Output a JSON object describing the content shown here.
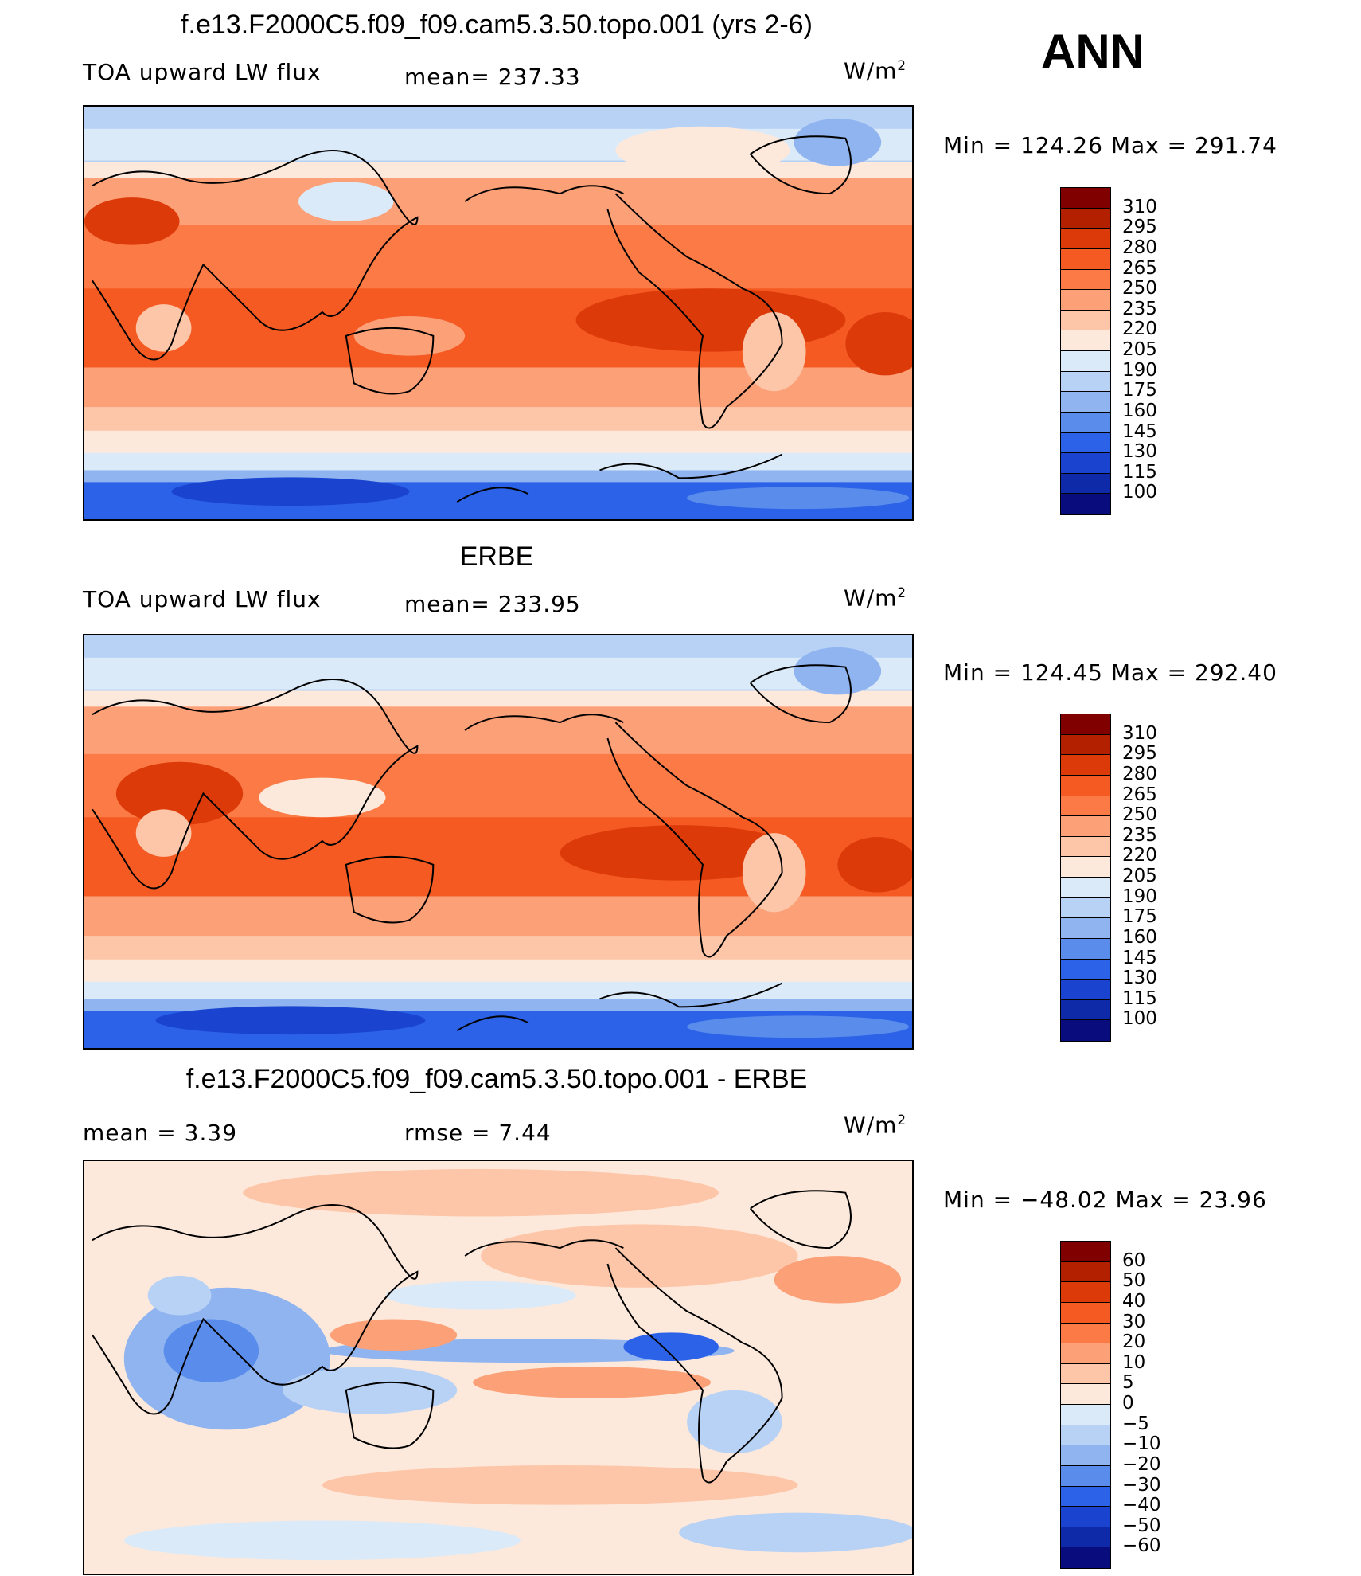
{
  "season": "ANN",
  "panels": [
    {
      "title": "f.e13.F2000C5.f09_f09.cam5.3.50.topo.001 (yrs 2-6)",
      "left_label": "TOA upward LW flux",
      "center_label": "mean=  237.33",
      "units_base": "W/m",
      "units_sup": "2",
      "minmax": "Min  =  124.26  Max  =  291.74",
      "colorbar_labels": [
        "310",
        "295",
        "280",
        "265",
        "250",
        "235",
        "220",
        "205",
        "190",
        "175",
        "160",
        "145",
        "130",
        "115",
        "100"
      ]
    },
    {
      "title": "ERBE",
      "left_label": "TOA upward LW flux",
      "center_label": "mean=  233.95",
      "units_base": "W/m",
      "units_sup": "2",
      "minmax": "Min  =  124.45  Max  =  292.40",
      "colorbar_labels": [
        "310",
        "295",
        "280",
        "265",
        "250",
        "235",
        "220",
        "205",
        "190",
        "175",
        "160",
        "145",
        "130",
        "115",
        "100"
      ]
    },
    {
      "title": "f.e13.F2000C5.f09_f09.cam5.3.50.topo.001 - ERBE",
      "left_label": "mean  =     3.39",
      "center_label": "rmse  =     7.44",
      "units_base": "W/m",
      "units_sup": "2",
      "minmax": "Min  =  −48.02  Max  =    23.96",
      "colorbar_labels": [
        "60",
        "50",
        "40",
        "30",
        "20",
        "10",
        "5",
        "0",
        "−5",
        "−10",
        "−20",
        "−30",
        "−40",
        "−50",
        "−60"
      ]
    }
  ],
  "colors": {
    "abs_scale": [
      "#800000",
      "#b32000",
      "#dd3a0a",
      "#f55a23",
      "#fb7a45",
      "#fca078",
      "#fdc6a8",
      "#fde9dc",
      "#dbeaf8",
      "#b8d2f5",
      "#8fb4f0",
      "#5a8ceb",
      "#2b62e8",
      "#1a44cf",
      "#0e2aa8",
      "#080c7c"
    ],
    "diff_scale": [
      "#800000",
      "#b32000",
      "#dd3a0a",
      "#f55a23",
      "#fb7a45",
      "#fca078",
      "#fdc6a8",
      "#fde9dc",
      "#dbeaf8",
      "#b8d2f5",
      "#8fb4f0",
      "#5a8ceb",
      "#2b62e8",
      "#1a44cf",
      "#0e2aa8",
      "#080c7c"
    ]
  }
}
